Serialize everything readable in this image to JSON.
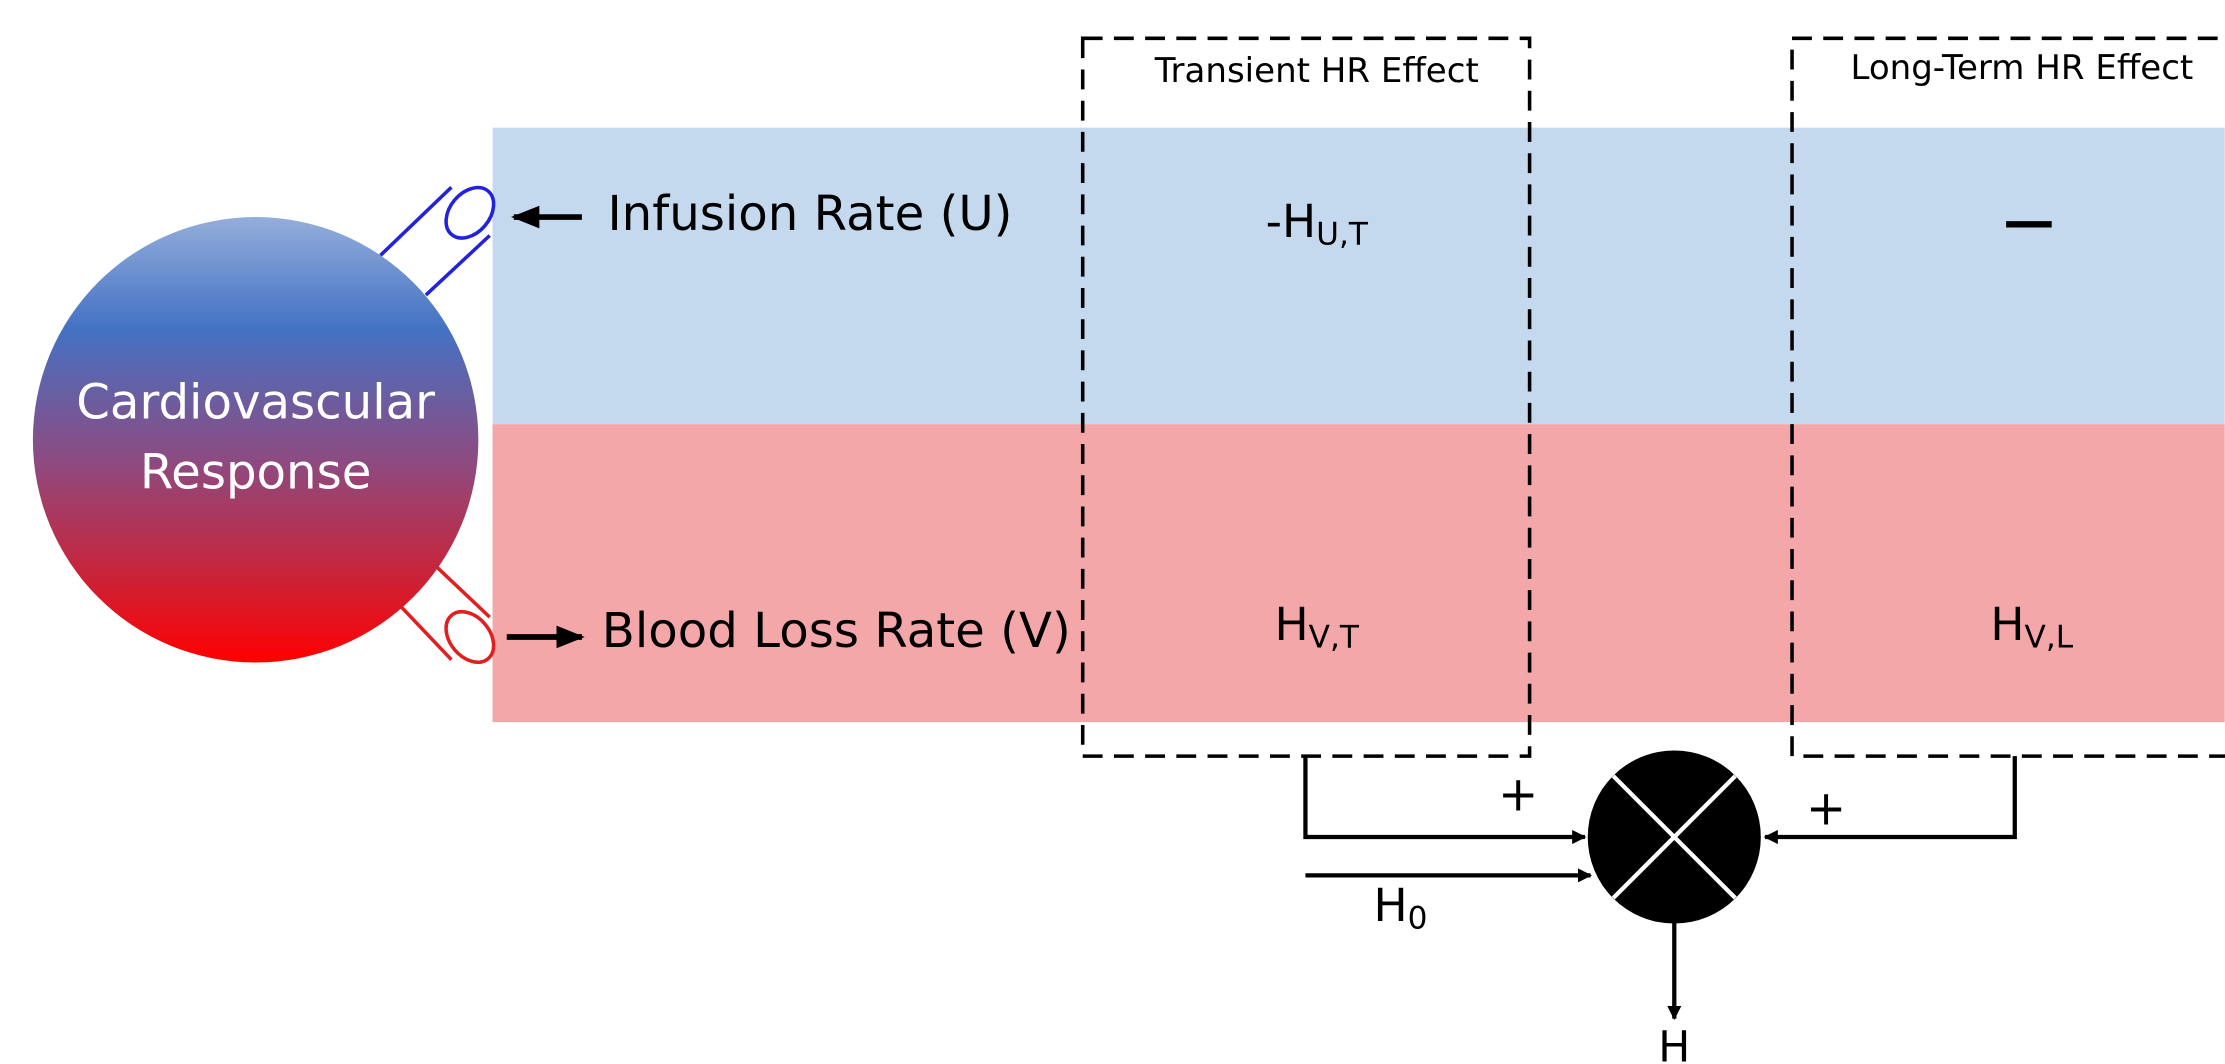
{
  "circle": {
    "lines": [
      "Cardiovascular",
      "Response"
    ]
  },
  "inputs": [
    {
      "label": "Infusion Rate (U)"
    },
    {
      "label": "Blood Loss Rate (V)"
    }
  ],
  "boxes": [
    {
      "title": "Transient HR Effect",
      "cells": [
        {
          "main": "-H",
          "sub": "U,T"
        },
        {
          "main": "H",
          "sub": "V,T"
        }
      ]
    },
    {
      "title": "Long-Term HR Effect",
      "cells": [
        {
          "main": "—"
        },
        {
          "main": "H",
          "sub": "V,L"
        }
      ]
    }
  ],
  "summing": {
    "signs": [
      "+",
      "+"
    ],
    "bias": {
      "main": "H",
      "sub": "0"
    },
    "output": "H"
  }
}
